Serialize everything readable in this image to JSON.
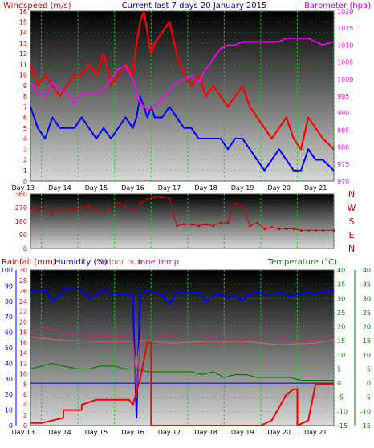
{
  "header": {
    "left_label": "Windspeed (m/s)",
    "center_label": "Current last 7 days 20 January 2015",
    "right_label": "Barometer (hpa)"
  },
  "third_panel_header": {
    "rainfall_label": "Rainfall (mm)",
    "humidity_label": "Humidity (%)",
    "indoor_label": "Indoor hum",
    "inne_label": "Inne temp",
    "temperature_label": "Temperature (°C)"
  },
  "x_axis": {
    "tick_labels": [
      "Day 13",
      "Day 14",
      "Day 15",
      "Day 16",
      "Day 17",
      "Day 18",
      "Day 19",
      "Day 20",
      "Day 21"
    ]
  },
  "colors": {
    "wind_max": "#ff0000",
    "wind_avg": "#0000ff",
    "barometer": "#ff00ff",
    "direction": "#cc0000",
    "humidity": "#0000ff",
    "indoor_hum": "#cc6666",
    "inne_temp": "#b03070",
    "temperature": "#008000",
    "rainfall": "#ff0000",
    "left_axis": "#cc0000",
    "hum_axis": "#0000ff",
    "temp_axis": "#008000",
    "panel_top": "#000000",
    "panel_bottom": "#d8d8d8"
  },
  "chart_data": [
    {
      "type": "line",
      "title": "Current last 7 days 20 January 2015",
      "xlabel": "",
      "x_range": [
        12.7,
        21.0
      ],
      "series": [
        {
          "name": "Windspeed (m/s)",
          "role": "wind_max",
          "axis": "left",
          "ylim": [
            0,
            16
          ],
          "x": [
            12.7,
            12.9,
            13.1,
            13.3,
            13.5,
            13.7,
            13.9,
            14.1,
            14.3,
            14.5,
            14.7,
            14.9,
            15.1,
            15.3,
            15.5,
            15.6,
            15.7,
            15.8,
            15.9,
            16.0,
            16.1,
            16.3,
            16.5,
            16.7,
            16.9,
            17.1,
            17.3,
            17.5,
            17.7,
            17.9,
            18.1,
            18.3,
            18.5,
            18.7,
            18.9,
            19.1,
            19.3,
            19.5,
            19.7,
            19.9,
            20.1,
            20.3,
            20.5,
            20.7,
            21.0
          ],
          "values": [
            11,
            9,
            10,
            9,
            8,
            9,
            10,
            10,
            11,
            10,
            12,
            9,
            10,
            11,
            10,
            13,
            15,
            16,
            14,
            12,
            13,
            14,
            15,
            12,
            10,
            9,
            10,
            8,
            9,
            8,
            7,
            8,
            9,
            7,
            6,
            5,
            4,
            5,
            6,
            4,
            3,
            6,
            5,
            4,
            3
          ]
        },
        {
          "name": "Wind average",
          "role": "wind_avg",
          "axis": "left",
          "ylim": [
            0,
            16
          ],
          "x": [
            12.7,
            12.9,
            13.1,
            13.3,
            13.5,
            13.7,
            13.9,
            14.1,
            14.3,
            14.5,
            14.7,
            14.9,
            15.1,
            15.3,
            15.5,
            15.6,
            15.7,
            15.8,
            15.9,
            16.0,
            16.1,
            16.3,
            16.5,
            16.7,
            16.9,
            17.1,
            17.3,
            17.5,
            17.7,
            17.9,
            18.1,
            18.3,
            18.5,
            18.7,
            18.9,
            19.1,
            19.3,
            19.5,
            19.7,
            19.9,
            20.1,
            20.3,
            20.5,
            20.7,
            21.0
          ],
          "values": [
            7,
            5,
            4,
            6,
            5,
            5,
            5,
            6,
            5,
            4,
            5,
            4,
            5,
            6,
            5,
            6,
            8,
            7,
            6,
            7,
            6,
            6,
            7,
            6,
            5,
            5,
            4,
            4,
            4,
            4,
            3,
            4,
            4,
            3,
            2,
            1,
            2,
            3,
            2,
            1,
            1,
            3,
            2,
            2,
            1
          ]
        },
        {
          "name": "Barometer (hpa)",
          "role": "barometer",
          "axis": "right",
          "ylim": [
            970,
            1020
          ],
          "x": [
            12.7,
            12.9,
            13.1,
            13.3,
            13.5,
            13.7,
            13.9,
            14.1,
            14.3,
            14.5,
            14.7,
            14.9,
            15.1,
            15.3,
            15.5,
            15.7,
            15.9,
            16.1,
            16.3,
            16.5,
            16.7,
            16.9,
            17.1,
            17.3,
            17.5,
            17.7,
            17.9,
            18.1,
            18.3,
            18.5,
            18.7,
            18.9,
            19.1,
            19.3,
            19.5,
            19.7,
            19.9,
            20.1,
            20.3,
            20.5,
            20.7,
            21.0
          ],
          "values": [
            999,
            996,
            995,
            999,
            997,
            996,
            993,
            996,
            996,
            996,
            997,
            1000,
            1003,
            1004,
            1000,
            993,
            991,
            992,
            994,
            997,
            999,
            1000,
            1001,
            999,
            1003,
            1006,
            1009,
            1010,
            1010,
            1011,
            1011,
            1011,
            1011,
            1011,
            1011,
            1012,
            1012,
            1012,
            1012,
            1011,
            1010,
            1011
          ]
        }
      ],
      "left_ticks": [
        0,
        1,
        2,
        3,
        4,
        5,
        6,
        7,
        8,
        9,
        10,
        11,
        12,
        13,
        14,
        15,
        16
      ],
      "right_ticks": [
        970,
        975,
        980,
        985,
        990,
        995,
        1000,
        1005,
        1010,
        1015,
        1020
      ]
    },
    {
      "type": "scatter",
      "title": "",
      "x_range": [
        12.7,
        21.0
      ],
      "series": [
        {
          "name": "",
          "role": "direction",
          "ylim": [
            0,
            360
          ],
          "x": [
            12.7,
            12.9,
            13.1,
            13.3,
            13.5,
            13.7,
            13.9,
            14.1,
            14.3,
            14.5,
            14.7,
            14.9,
            15.1,
            15.3,
            15.5,
            15.7,
            15.9,
            16.1,
            16.3,
            16.5,
            16.7,
            16.9,
            17.1,
            17.3,
            17.5,
            17.7,
            17.9,
            18.1,
            18.3,
            18.5,
            18.7,
            18.9,
            19.1,
            19.3,
            19.5,
            19.7,
            19.9,
            20.1,
            20.3,
            20.5,
            20.7,
            21.0
          ],
          "values": [
            270,
            250,
            280,
            230,
            260,
            250,
            260,
            270,
            280,
            250,
            240,
            270,
            300,
            280,
            250,
            300,
            330,
            340,
            340,
            330,
            150,
            160,
            160,
            150,
            160,
            150,
            170,
            170,
            300,
            280,
            150,
            170,
            130,
            140,
            130,
            130,
            130,
            120,
            120,
            120,
            120,
            120
          ]
        }
      ],
      "left_ticks": [
        0,
        90,
        180,
        270,
        360
      ],
      "right_labels": [
        "N",
        "W",
        "S",
        "E",
        "N"
      ]
    },
    {
      "type": "line",
      "title": "",
      "x_range": [
        12.7,
        21.0
      ],
      "series": [
        {
          "name": "Humidity (%)",
          "role": "humidity",
          "axis": "hum",
          "ylim": [
            0,
            100
          ],
          "x": [
            12.7,
            12.9,
            13.1,
            13.3,
            13.5,
            13.7,
            13.9,
            14.1,
            14.3,
            14.5,
            14.7,
            14.9,
            15.1,
            15.3,
            15.5,
            15.6,
            15.7,
            15.9,
            16.1,
            16.3,
            16.5,
            16.7,
            16.9,
            17.1,
            17.3,
            17.5,
            17.7,
            17.9,
            18.1,
            18.3,
            18.5,
            18.7,
            18.9,
            19.1,
            19.3,
            19.5,
            19.7,
            19.9,
            20.1,
            20.3,
            20.5,
            20.7,
            21.0
          ],
          "values": [
            87,
            86,
            88,
            80,
            84,
            89,
            88,
            87,
            82,
            84,
            87,
            85,
            85,
            85,
            84,
            5,
            85,
            87,
            86,
            84,
            78,
            86,
            86,
            86,
            86,
            80,
            84,
            85,
            82,
            84,
            80,
            85,
            86,
            84,
            85,
            86,
            84,
            84,
            85,
            86,
            85,
            86,
            87
          ]
        },
        {
          "name": "Indoor hum",
          "role": "indoor_hum",
          "axis": "hum",
          "ylim": [
            0,
            100
          ],
          "x": [
            12.7,
            13.5,
            14.5,
            15.5,
            15.6,
            15.7,
            16.5,
            17.5,
            18.5,
            19.5,
            20.5,
            21.0
          ],
          "values": [
            57,
            55,
            54,
            54,
            34,
            55,
            53,
            54,
            54,
            52,
            53,
            55
          ]
        },
        {
          "name": "Inne temp",
          "role": "inne_temp",
          "axis": "temp",
          "ylim": [
            -15,
            40
          ],
          "x": [
            12.7,
            13.0,
            13.5,
            14.0,
            14.5,
            15.0,
            15.5,
            15.6,
            15.7,
            16.0,
            16.5,
            17.0,
            17.5,
            18.0,
            18.5,
            19.0,
            19.5,
            20.0,
            20.5,
            21.0
          ],
          "values": [
            18,
            20,
            18,
            17,
            17,
            17,
            17,
            -5,
            16,
            16,
            17,
            16,
            17,
            16,
            15,
            16,
            16,
            15,
            15,
            17
          ]
        },
        {
          "name": "Temperature (°C)",
          "role": "temperature",
          "axis": "temp",
          "ylim": [
            -15,
            40
          ],
          "x": [
            12.7,
            13.0,
            13.3,
            13.6,
            14.0,
            14.3,
            14.6,
            15.0,
            15.3,
            15.6,
            15.9,
            16.2,
            16.5,
            16.8,
            17.1,
            17.4,
            17.7,
            18.0,
            18.3,
            18.6,
            18.9,
            19.2,
            19.5,
            19.8,
            20.1,
            20.4,
            20.7,
            21.0
          ],
          "values": [
            5,
            6,
            7,
            6,
            5,
            5,
            6,
            6,
            5,
            5,
            4,
            4,
            4,
            4,
            4,
            3,
            4,
            2,
            3,
            3,
            2,
            2,
            2,
            2,
            1,
            1,
            1,
            1
          ]
        },
        {
          "name": "Rainfall (mm)",
          "role": "rainfall",
          "axis": "rain",
          "ylim": [
            0,
            30
          ],
          "x": [
            12.7,
            13.0,
            13.6,
            13.6,
            14.1,
            14.1,
            14.5,
            14.6,
            15.0,
            15.4,
            15.5,
            15.7,
            15.9,
            16.0,
            16.0,
            17.0,
            18.0,
            19.0,
            19.3,
            19.7,
            19.9,
            20.0,
            20.0,
            20.3,
            20.5,
            20.7,
            21.0
          ],
          "values": [
            0.5,
            0.5,
            1.5,
            3,
            3,
            4,
            5,
            5,
            5,
            5,
            4,
            9,
            16,
            16,
            0,
            0,
            0,
            0,
            1,
            6,
            7,
            7,
            0,
            1,
            8,
            8,
            8
          ]
        }
      ],
      "rain_ticks": [
        0,
        2,
        4,
        6,
        8,
        10,
        12,
        14,
        16,
        18,
        20,
        22,
        24,
        26,
        28,
        30
      ],
      "hum_ticks": [
        0,
        10,
        20,
        30,
        40,
        50,
        60,
        70,
        80,
        90,
        100
      ],
      "temp_ticks": [
        -15,
        -10,
        -5,
        0,
        5,
        10,
        15,
        20,
        25,
        30,
        35,
        40
      ]
    }
  ]
}
